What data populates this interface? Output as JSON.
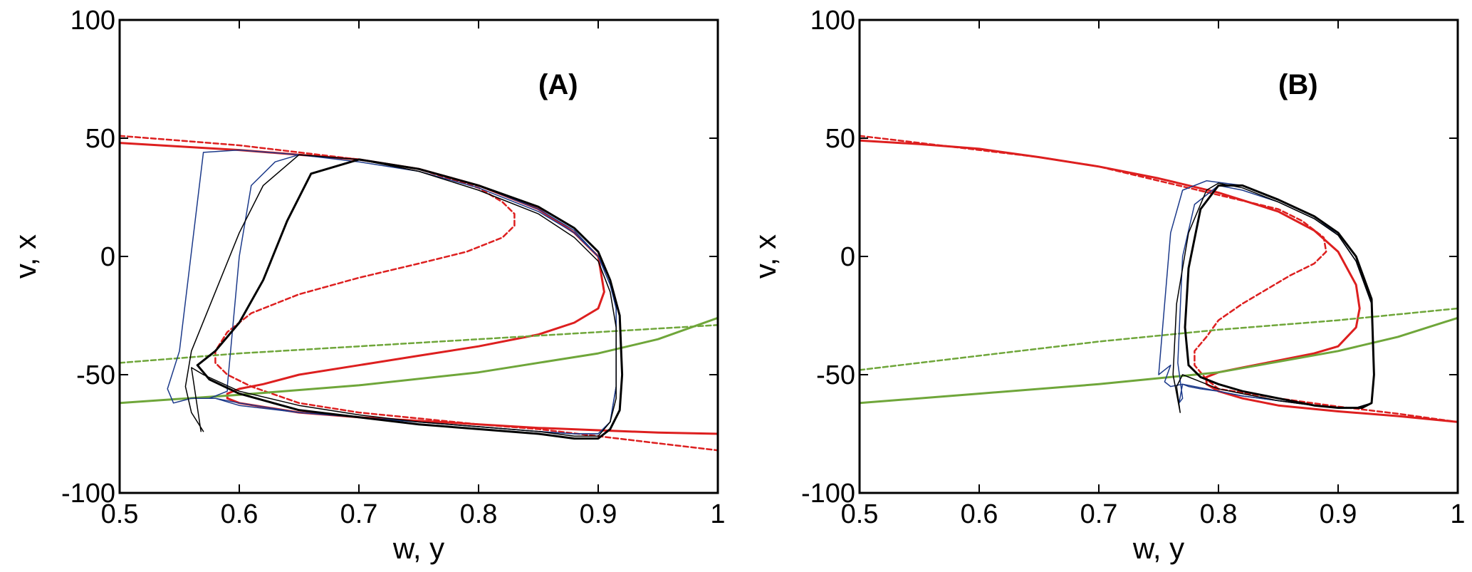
{
  "chart_data": [
    {
      "type": "line",
      "panel_label": "(A)",
      "xlabel": "w, y",
      "ylabel": "v, x",
      "xlim": [
        0.5,
        1.0
      ],
      "ylim": [
        -100,
        100
      ],
      "xticks": [
        "0.5",
        "0.6",
        "0.7",
        "0.8",
        "0.9",
        "1"
      ],
      "yticks": [
        "-100",
        "-50",
        "0",
        "50",
        "100"
      ],
      "grid": false,
      "series": [
        {
          "style": "solid",
          "color": "#dd1f1f",
          "width": 3,
          "x": [
            0.5,
            0.55,
            0.6,
            0.65,
            0.7,
            0.75,
            0.8,
            0.85,
            0.88,
            0.9,
            0.905,
            0.9,
            0.88,
            0.85,
            0.8,
            0.75,
            0.7,
            0.65,
            0.62,
            0.6,
            0.59,
            0.59,
            0.6,
            0.65,
            0.7,
            0.75,
            0.8,
            0.85,
            0.9,
            0.95,
            1.0
          ],
          "y": [
            48,
            46.5,
            45,
            43,
            41,
            37,
            30,
            20,
            10,
            0,
            -15,
            -22,
            -28,
            -33,
            -38,
            -42,
            -46,
            -50,
            -54,
            -56,
            -58,
            -60,
            -62,
            -66,
            -68,
            -69.5,
            -71,
            -72.5,
            -73.5,
            -74.5,
            -75
          ]
        },
        {
          "style": "dashed",
          "color": "#dd1f1f",
          "width": 2.5,
          "x": [
            0.5,
            0.55,
            0.6,
            0.65,
            0.7,
            0.75,
            0.8,
            0.82,
            0.83,
            0.83,
            0.82,
            0.79,
            0.75,
            0.7,
            0.65,
            0.61,
            0.59,
            0.58,
            0.58,
            0.59,
            0.61,
            0.65,
            0.7,
            0.75,
            0.8,
            0.85,
            0.9,
            0.95,
            1.0
          ],
          "y": [
            51,
            49,
            47,
            44,
            41,
            37,
            29,
            23,
            18,
            13,
            8,
            2,
            -3,
            -9,
            -16,
            -24,
            -32,
            -40,
            -45,
            -50,
            -55,
            -62,
            -66,
            -68.5,
            -71,
            -73,
            -76,
            -79,
            -82
          ]
        },
        {
          "style": "solid",
          "color": "#6fa63a",
          "width": 3,
          "x": [
            0.5,
            0.6,
            0.7,
            0.8,
            0.9,
            0.95,
            1.0
          ],
          "y": [
            -62,
            -58.5,
            -54.5,
            -49,
            -41,
            -35,
            -26
          ]
        },
        {
          "style": "dashed",
          "color": "#6fa63a",
          "width": 2.5,
          "x": [
            0.5,
            0.6,
            0.7,
            0.8,
            0.9,
            1.0
          ],
          "y": [
            -45,
            -41,
            -38,
            -35,
            -32,
            -29
          ]
        },
        {
          "style": "solid",
          "color": "#1c3a8a",
          "width": 1.5,
          "x": [
            0.55,
            0.57,
            0.6,
            0.65,
            0.7,
            0.75,
            0.8,
            0.85,
            0.88,
            0.9,
            0.91,
            0.915,
            0.915,
            0.91,
            0.9,
            0.88,
            0.85,
            0.8,
            0.75,
            0.7,
            0.65,
            0.6,
            0.58,
            0.56,
            0.545,
            0.54,
            0.55
          ],
          "y": [
            -40,
            44,
            45,
            43,
            40,
            36,
            29,
            19,
            10,
            0,
            -10,
            -20,
            -55,
            -70,
            -75,
            -75,
            -74,
            -72,
            -70,
            -68,
            -66,
            -63,
            -60,
            -60,
            -62,
            -56,
            -40
          ]
        },
        {
          "style": "solid",
          "color": "#1c3a8a",
          "width": 1.5,
          "x": [
            0.59,
            0.6,
            0.61,
            0.63,
            0.65,
            0.7,
            0.75,
            0.8,
            0.85,
            0.88,
            0.9,
            0.91,
            0.915,
            0.915,
            0.91,
            0.9,
            0.88,
            0.85,
            0.8,
            0.75,
            0.7,
            0.65,
            0.6,
            0.58,
            0.575,
            0.59,
            0.59
          ],
          "y": [
            -55,
            0,
            30,
            40,
            43,
            41,
            37,
            30,
            20,
            11,
            0,
            -12,
            -22,
            -55,
            -70,
            -75,
            -75,
            -74,
            -72,
            -70,
            -68,
            -66,
            -62,
            -60,
            -60,
            -57,
            -55
          ]
        },
        {
          "style": "solid",
          "color": "#000000",
          "width": 1.5,
          "x": [
            0.57,
            0.56,
            0.555,
            0.56,
            0.58,
            0.6,
            0.62,
            0.65,
            0.7,
            0.75,
            0.8,
            0.85,
            0.88,
            0.9,
            0.91,
            0.915,
            0.915,
            0.91,
            0.9,
            0.88,
            0.85,
            0.8,
            0.75,
            0.7,
            0.65,
            0.6,
            0.57,
            0.56,
            0.568
          ],
          "y": [
            -74,
            -66,
            -55,
            -40,
            -15,
            10,
            30,
            43,
            41,
            36,
            28,
            18,
            8,
            -2,
            -15,
            -30,
            -60,
            -70,
            -76,
            -76,
            -74,
            -72,
            -70,
            -67,
            -63,
            -57,
            -50,
            -47,
            -74
          ]
        },
        {
          "style": "solid",
          "color": "#000000",
          "width": 3,
          "x": [
            0.57,
            0.58,
            0.6,
            0.62,
            0.64,
            0.66,
            0.7,
            0.75,
            0.8,
            0.85,
            0.88,
            0.9,
            0.91,
            0.918,
            0.92,
            0.918,
            0.91,
            0.9,
            0.88,
            0.85,
            0.8,
            0.75,
            0.7,
            0.65,
            0.6,
            0.575,
            0.565,
            0.57
          ],
          "y": [
            -44,
            -40,
            -28,
            -10,
            15,
            35,
            41,
            37,
            30,
            21,
            12,
            2,
            -10,
            -25,
            -50,
            -65,
            -73,
            -77,
            -77,
            -75,
            -73,
            -71,
            -68,
            -65,
            -58,
            -52,
            -46,
            -44
          ]
        }
      ]
    },
    {
      "type": "line",
      "panel_label": "(B)",
      "xlabel": "w, y",
      "ylabel": "v, x",
      "xlim": [
        0.5,
        1.0
      ],
      "ylim": [
        -100,
        100
      ],
      "xticks": [
        "0.5",
        "0.6",
        "0.7",
        "0.8",
        "0.9",
        "1"
      ],
      "yticks": [
        "-100",
        "-50",
        "0",
        "50",
        "100"
      ],
      "grid": false,
      "series": [
        {
          "style": "solid",
          "color": "#dd1f1f",
          "width": 3,
          "x": [
            0.5,
            0.55,
            0.6,
            0.65,
            0.7,
            0.75,
            0.8,
            0.85,
            0.88,
            0.9,
            0.915,
            0.918,
            0.915,
            0.9,
            0.88,
            0.85,
            0.82,
            0.8,
            0.79,
            0.79,
            0.8,
            0.82,
            0.85,
            0.9,
            0.95,
            1.0
          ],
          "y": [
            49,
            47.5,
            45.5,
            42,
            38,
            33,
            27,
            19,
            11,
            2,
            -12,
            -22,
            -30,
            -38,
            -41,
            -44,
            -47,
            -49,
            -51,
            -54,
            -57,
            -60,
            -63,
            -65.5,
            -67.5,
            -70
          ]
        },
        {
          "style": "dashed",
          "color": "#dd1f1f",
          "width": 2.5,
          "x": [
            0.5,
            0.55,
            0.6,
            0.65,
            0.7,
            0.75,
            0.8,
            0.85,
            0.87,
            0.888,
            0.89,
            0.88,
            0.86,
            0.84,
            0.82,
            0.8,
            0.79,
            0.78,
            0.78,
            0.79,
            0.8,
            0.85,
            0.9,
            0.95,
            1.0
          ],
          "y": [
            51,
            48,
            45,
            42,
            38,
            32,
            26,
            20,
            15,
            8,
            2,
            -3,
            -8,
            -14,
            -20,
            -27,
            -34,
            -40,
            -46,
            -52,
            -56,
            -60,
            -63.5,
            -66.5,
            -70
          ]
        },
        {
          "style": "solid",
          "color": "#6fa63a",
          "width": 3,
          "x": [
            0.5,
            0.6,
            0.7,
            0.8,
            0.9,
            0.95,
            1.0
          ],
          "y": [
            -62,
            -58,
            -54,
            -49,
            -40,
            -34,
            -26
          ]
        },
        {
          "style": "dashed",
          "color": "#6fa63a",
          "width": 2.5,
          "x": [
            0.5,
            0.6,
            0.7,
            0.8,
            0.9,
            1.0
          ],
          "y": [
            -48,
            -42,
            -36,
            -31,
            -27,
            -22
          ]
        },
        {
          "style": "solid",
          "color": "#1c3a8a",
          "width": 1.5,
          "x": [
            0.76,
            0.75,
            0.755,
            0.76,
            0.77,
            0.79,
            0.82,
            0.85,
            0.88,
            0.9,
            0.915,
            0.928,
            0.93,
            0.928,
            0.915,
            0.9,
            0.88,
            0.85,
            0.82,
            0.8,
            0.78,
            0.77,
            0.76,
            0.755,
            0.76
          ],
          "y": [
            -46,
            -50,
            -20,
            10,
            28,
            32,
            30,
            24,
            17,
            9,
            -2,
            -20,
            -50,
            -62,
            -64,
            -64,
            -63,
            -61,
            -59,
            -57,
            -55,
            -54,
            -55,
            -53,
            -46
          ]
        },
        {
          "style": "solid",
          "color": "#1c3a8a",
          "width": 1.5,
          "x": [
            0.77,
            0.766,
            0.77,
            0.78,
            0.8,
            0.82,
            0.85,
            0.88,
            0.9,
            0.915,
            0.928,
            0.93,
            0.928,
            0.915,
            0.9,
            0.88,
            0.85,
            0.82,
            0.8,
            0.785,
            0.775,
            0.77,
            0.767,
            0.77
          ],
          "y": [
            -60,
            -45,
            0,
            22,
            30,
            28,
            23,
            16,
            9,
            -2,
            -20,
            -50,
            -62,
            -64,
            -64,
            -63,
            -61,
            -59,
            -57,
            -56,
            -55,
            -54,
            -62,
            -60
          ]
        },
        {
          "style": "solid",
          "color": "#000000",
          "width": 1.5,
          "x": [
            0.768,
            0.762,
            0.765,
            0.775,
            0.79,
            0.8,
            0.82,
            0.85,
            0.88,
            0.9,
            0.915,
            0.928,
            0.93,
            0.928,
            0.915,
            0.9,
            0.88,
            0.85,
            0.82,
            0.8,
            0.78,
            0.77,
            0.765,
            0.768
          ],
          "y": [
            -66,
            -50,
            -20,
            10,
            28,
            31,
            29,
            23,
            16,
            9,
            -2,
            -20,
            -50,
            -62,
            -64,
            -64,
            -63,
            -61,
            -58,
            -56,
            -52,
            -50,
            -55,
            -66
          ]
        },
        {
          "style": "solid",
          "color": "#000000",
          "width": 3,
          "x": [
            0.775,
            0.772,
            0.775,
            0.785,
            0.8,
            0.82,
            0.85,
            0.88,
            0.9,
            0.915,
            0.928,
            0.93,
            0.928,
            0.92,
            0.9,
            0.88,
            0.85,
            0.82,
            0.8,
            0.785,
            0.775
          ],
          "y": [
            -46,
            -30,
            -5,
            20,
            30,
            30,
            24,
            17,
            10,
            0,
            -18,
            -50,
            -62,
            -64,
            -64,
            -63,
            -60,
            -57,
            -54,
            -51,
            -46
          ]
        }
      ]
    }
  ]
}
